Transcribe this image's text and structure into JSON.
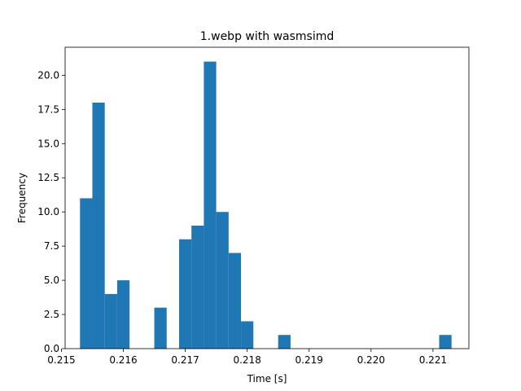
{
  "chart_data": {
    "type": "bar",
    "title": "1.webp with wasmsimd",
    "xlabel": "Time [s]",
    "ylabel": "Frequency",
    "xlim": [
      0.21506,
      0.22158
    ],
    "ylim": [
      0,
      22.05
    ],
    "grid": false,
    "legend": "none",
    "bar_color": "#1f77b4",
    "x_ticks": [
      {
        "value": 0.215,
        "label": "0.215"
      },
      {
        "value": 0.216,
        "label": "0.216"
      },
      {
        "value": 0.217,
        "label": "0.217"
      },
      {
        "value": 0.218,
        "label": "0.218"
      },
      {
        "value": 0.219,
        "label": "0.219"
      },
      {
        "value": 0.22,
        "label": "0.220"
      },
      {
        "value": 0.221,
        "label": "0.221"
      }
    ],
    "y_ticks": [
      {
        "value": 0,
        "label": "0.0"
      },
      {
        "value": 2.5,
        "label": "2.5"
      },
      {
        "value": 5,
        "label": "5.0"
      },
      {
        "value": 7.5,
        "label": "7.5"
      },
      {
        "value": 10,
        "label": "10.0"
      },
      {
        "value": 12.5,
        "label": "12.5"
      },
      {
        "value": 15,
        "label": "15.0"
      },
      {
        "value": 17.5,
        "label": "17.5"
      },
      {
        "value": 20,
        "label": "20.0"
      }
    ],
    "bins": [
      {
        "x0": 0.2153,
        "x1": 0.2155,
        "count": 11
      },
      {
        "x0": 0.2155,
        "x1": 0.2157,
        "count": 18
      },
      {
        "x0": 0.2157,
        "x1": 0.2159,
        "count": 4
      },
      {
        "x0": 0.2159,
        "x1": 0.2161,
        "count": 5
      },
      {
        "x0": 0.2161,
        "x1": 0.2163,
        "count": 0
      },
      {
        "x0": 0.2163,
        "x1": 0.2165,
        "count": 0
      },
      {
        "x0": 0.2165,
        "x1": 0.2167,
        "count": 3
      },
      {
        "x0": 0.2167,
        "x1": 0.2169,
        "count": 0
      },
      {
        "x0": 0.2169,
        "x1": 0.2171,
        "count": 8
      },
      {
        "x0": 0.2171,
        "x1": 0.2173,
        "count": 9
      },
      {
        "x0": 0.2173,
        "x1": 0.2175,
        "count": 21
      },
      {
        "x0": 0.2175,
        "x1": 0.2177,
        "count": 10
      },
      {
        "x0": 0.2177,
        "x1": 0.2179,
        "count": 7
      },
      {
        "x0": 0.2179,
        "x1": 0.2181,
        "count": 2
      },
      {
        "x0": 0.2181,
        "x1": 0.2183,
        "count": 0
      },
      {
        "x0": 0.2183,
        "x1": 0.2185,
        "count": 0
      },
      {
        "x0": 0.2185,
        "x1": 0.2187,
        "count": 1
      },
      {
        "x0": 0.2187,
        "x1": 0.2189,
        "count": 0
      },
      {
        "x0": 0.2189,
        "x1": 0.2191,
        "count": 0
      },
      {
        "x0": 0.2191,
        "x1": 0.2193,
        "count": 0
      },
      {
        "x0": 0.2193,
        "x1": 0.2195,
        "count": 0
      },
      {
        "x0": 0.2195,
        "x1": 0.2197,
        "count": 0
      },
      {
        "x0": 0.2197,
        "x1": 0.2199,
        "count": 0
      },
      {
        "x0": 0.2199,
        "x1": 0.2201,
        "count": 0
      },
      {
        "x0": 0.2201,
        "x1": 0.2203,
        "count": 0
      },
      {
        "x0": 0.2203,
        "x1": 0.2205,
        "count": 0
      },
      {
        "x0": 0.2205,
        "x1": 0.2207,
        "count": 0
      },
      {
        "x0": 0.2207,
        "x1": 0.2209,
        "count": 0
      },
      {
        "x0": 0.2209,
        "x1": 0.2211,
        "count": 0
      },
      {
        "x0": 0.2211,
        "x1": 0.2213,
        "count": 1
      }
    ]
  }
}
